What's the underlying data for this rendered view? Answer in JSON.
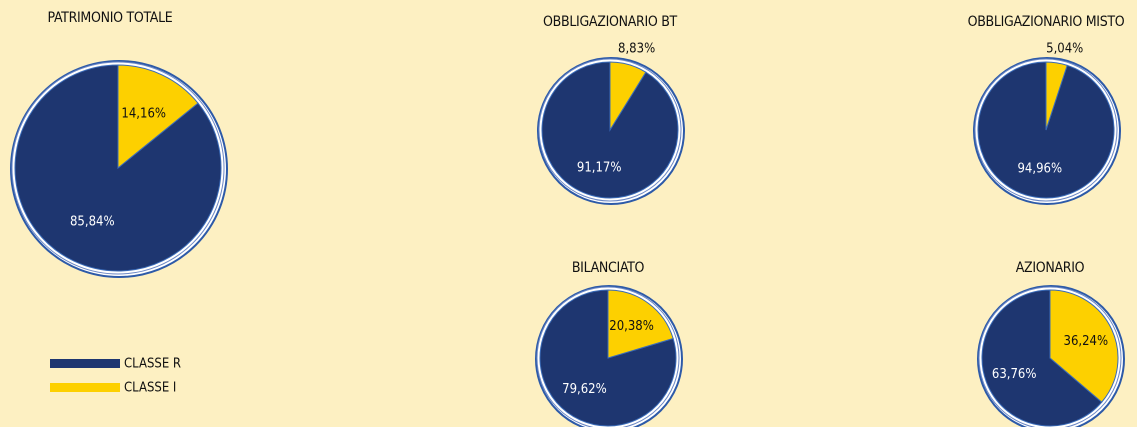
{
  "chart_data": [
    {
      "type": "pie",
      "title": "PATRIMONIO TOTALE",
      "categories": [
        "CLASSE R",
        "CLASSE I"
      ],
      "colors": [
        "#1e3670",
        "#fdd000"
      ],
      "values": [
        85.84,
        14.16
      ],
      "value_labels": [
        "85,84%",
        "14,16%"
      ]
    },
    {
      "type": "pie",
      "title": "OBBLIGAZIONARIO BT",
      "categories": [
        "CLASSE R",
        "CLASSE I"
      ],
      "colors": [
        "#1e3670",
        "#fdd000"
      ],
      "values": [
        91.17,
        8.83
      ],
      "value_labels": [
        "91,17%",
        "8,83%"
      ]
    },
    {
      "type": "pie",
      "title": "OBBLIGAZIONARIO MISTO",
      "categories": [
        "CLASSE R",
        "CLASSE I"
      ],
      "colors": [
        "#1e3670",
        "#fdd000"
      ],
      "values": [
        94.96,
        5.04
      ],
      "value_labels": [
        "94,96%",
        "5,04%"
      ]
    },
    {
      "type": "pie",
      "title": "BILANCIATO",
      "categories": [
        "CLASSE R",
        "CLASSE I"
      ],
      "colors": [
        "#1e3670",
        "#fdd000"
      ],
      "values": [
        79.62,
        20.38
      ],
      "value_labels": [
        "79,62%",
        "20,38%"
      ]
    },
    {
      "type": "pie",
      "title": "AZIONARIO",
      "categories": [
        "CLASSE R",
        "CLASSE I"
      ],
      "colors": [
        "#1e3670",
        "#fdd000"
      ],
      "values": [
        63.76,
        36.24
      ],
      "value_labels": [
        "63,76%",
        "36,24%"
      ]
    }
  ]
}
